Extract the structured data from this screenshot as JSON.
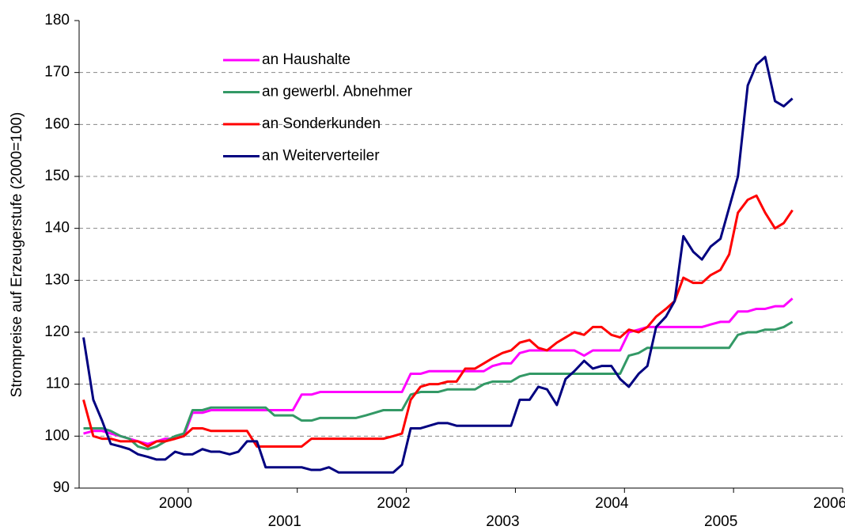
{
  "chart_data": {
    "type": "line",
    "y_label": "Strompreise auf Erzeugerstufe (2000=100)",
    "x": [
      1999.04,
      1999.13,
      1999.21,
      1999.29,
      1999.38,
      1999.46,
      1999.54,
      1999.63,
      1999.71,
      1999.79,
      1999.88,
      1999.96,
      2000.04,
      2000.13,
      2000.21,
      2000.29,
      2000.38,
      2000.46,
      2000.54,
      2000.63,
      2000.71,
      2000.79,
      2000.88,
      2000.96,
      2001.04,
      2001.13,
      2001.21,
      2001.29,
      2001.38,
      2001.46,
      2001.54,
      2001.63,
      2001.71,
      2001.79,
      2001.88,
      2001.96,
      2002.04,
      2002.13,
      2002.21,
      2002.29,
      2002.38,
      2002.46,
      2002.54,
      2002.63,
      2002.71,
      2002.79,
      2002.88,
      2002.96,
      2003.04,
      2003.13,
      2003.21,
      2003.29,
      2003.38,
      2003.46,
      2003.54,
      2003.63,
      2003.71,
      2003.79,
      2003.88,
      2003.96,
      2004.04,
      2004.13,
      2004.21,
      2004.29,
      2004.38,
      2004.46,
      2004.54,
      2004.63,
      2004.71,
      2004.79,
      2004.88,
      2004.96,
      2005.04,
      2005.13,
      2005.21,
      2005.29,
      2005.38,
      2005.46,
      2005.54
    ],
    "series": [
      {
        "name": "an Haushalte",
        "color": "#ff00ff",
        "values": [
          100.5,
          101,
          101,
          100.5,
          100,
          99.5,
          99,
          98.5,
          99,
          99.5,
          99.5,
          100,
          104.5,
          104.5,
          105,
          105,
          105,
          105,
          105,
          105,
          105,
          105,
          105,
          105,
          108,
          108,
          108.5,
          108.5,
          108.5,
          108.5,
          108.5,
          108.5,
          108.5,
          108.5,
          108.5,
          108.5,
          112,
          112,
          112.5,
          112.5,
          112.5,
          112.5,
          112.5,
          112.5,
          112.5,
          113.5,
          114,
          114,
          116,
          116.5,
          116.5,
          116.5,
          116.5,
          116.5,
          116.5,
          115.5,
          116.5,
          116.5,
          116.5,
          116.5,
          120,
          120.5,
          121,
          121,
          121,
          121,
          121,
          121,
          121,
          121.5,
          122,
          122,
          124,
          124,
          124.5,
          124.5,
          125,
          125,
          126.5
        ]
      },
      {
        "name": "an gewerbl. Abnehmer",
        "color": "#339966",
        "values": [
          101.5,
          101.5,
          101.5,
          101,
          100,
          99.5,
          98,
          97.5,
          98,
          99,
          100,
          100.5,
          105,
          105,
          105.5,
          105.5,
          105.5,
          105.5,
          105.5,
          105.5,
          105.5,
          104,
          104,
          104,
          103,
          103,
          103.5,
          103.5,
          103.5,
          103.5,
          103.5,
          104,
          104.5,
          105,
          105,
          105,
          108,
          108.5,
          108.5,
          108.5,
          109,
          109,
          109,
          109,
          110,
          110.5,
          110.5,
          110.5,
          111.5,
          112,
          112,
          112,
          112,
          112,
          112,
          112,
          112,
          112,
          112,
          112,
          115.5,
          116,
          117,
          117,
          117,
          117,
          117,
          117,
          117,
          117,
          117,
          117,
          119.5,
          120,
          120,
          120.5,
          120.5,
          121,
          122
        ]
      },
      {
        "name": "an Sonderkunden",
        "color": "#ff0000",
        "values": [
          107,
          100,
          99.5,
          99.5,
          99,
          99,
          99,
          98,
          99,
          99,
          99.5,
          100,
          101.5,
          101.5,
          101,
          101,
          101,
          101,
          101,
          98,
          98,
          98,
          98,
          98,
          98,
          99.5,
          99.5,
          99.5,
          99.5,
          99.5,
          99.5,
          99.5,
          99.5,
          99.5,
          100,
          100.5,
          107,
          109.5,
          110,
          110,
          110.5,
          110.5,
          113,
          113,
          114,
          115,
          116,
          116.5,
          118,
          118.5,
          117,
          116.5,
          118,
          119,
          120,
          119.5,
          121,
          121,
          119.5,
          119,
          120.5,
          120,
          121,
          123,
          124.5,
          126,
          130.5,
          129.5,
          129.5,
          131,
          132,
          135,
          143,
          145.5,
          146.3,
          143,
          140,
          141,
          143.5
        ]
      },
      {
        "name": "an Weiterverteiler",
        "color": "#000080",
        "values": [
          119,
          107,
          103,
          98.5,
          98,
          97.5,
          96.5,
          96,
          95.5,
          95.5,
          97,
          96.5,
          96.5,
          97.5,
          97,
          97,
          96.5,
          97,
          99,
          99,
          94,
          94,
          94,
          94,
          94,
          93.5,
          93.5,
          94,
          93,
          93,
          93,
          93,
          93,
          93,
          93,
          94.5,
          101.5,
          101.5,
          102,
          102.5,
          102.5,
          102,
          102,
          102,
          102,
          102,
          102,
          102,
          107,
          107,
          109.5,
          109,
          106,
          111,
          112.5,
          114.5,
          113,
          113.5,
          113.5,
          111,
          109.5,
          112,
          113.5,
          121,
          123,
          126,
          138.5,
          135.5,
          134,
          136.5,
          138,
          144,
          150,
          167.5,
          171.5,
          173,
          164.5,
          163.5,
          165
        ]
      }
    ],
    "xlim": [
      1999,
      2006
    ],
    "xticks": [
      2000,
      2001,
      2002,
      2003,
      2004,
      2005,
      2006
    ],
    "ylim": [
      90,
      180
    ],
    "yticks": [
      90,
      100,
      110,
      120,
      130,
      140,
      150,
      160,
      170,
      180
    ],
    "grid": true,
    "legend": "upper-left"
  }
}
